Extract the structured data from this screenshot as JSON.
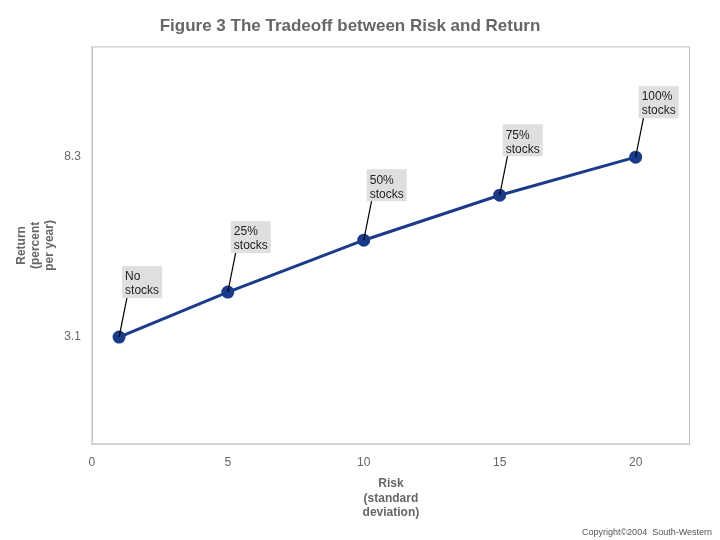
{
  "chart_data": {
    "type": "line",
    "title": "Figure 3 The Tradeoff between Risk and Return",
    "xlabel": "Risk\n(standard\ndeviation)",
    "ylabel": "Return\n(percent\nper year)",
    "x": [
      1,
      5,
      10,
      15,
      20
    ],
    "values": [
      3.1,
      4.4,
      5.9,
      7.2,
      8.3
    ],
    "color": "#1a3a8a",
    "marker": "circle",
    "xlim": [
      0,
      22
    ],
    "xticks": [
      0,
      5,
      10,
      15,
      20
    ],
    "ylim": [
      0,
      11.5
    ],
    "yticks": [
      3.1,
      8.3
    ],
    "grid": false,
    "annotations": [
      {
        "label": "No\nstocks",
        "x": 1,
        "y": 3.1
      },
      {
        "label": "25%\nstocks",
        "x": 5,
        "y": 4.4
      },
      {
        "label": "50%\nstocks",
        "x": 10,
        "y": 5.9
      },
      {
        "label": "75%\nstocks",
        "x": 15,
        "y": 7.2
      },
      {
        "label": "100%\nstocks",
        "x": 20,
        "y": 8.3
      },
      {
        "label": "Copyright©2004  South-Western"
      }
    ]
  }
}
